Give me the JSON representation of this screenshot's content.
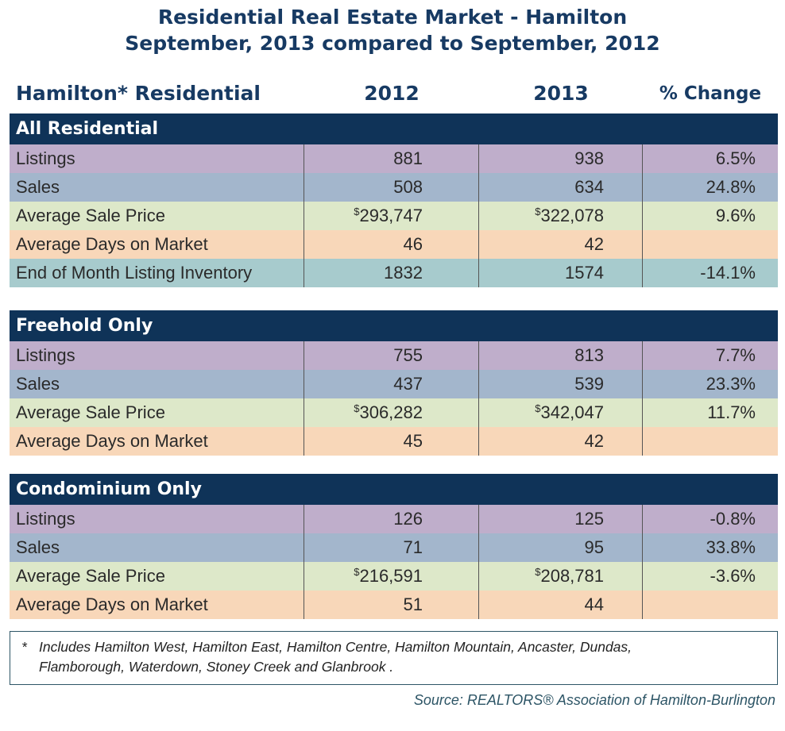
{
  "title_line1": "Residential Real Estate Market - Hamilton",
  "title_line2": "September, 2013 compared to September, 2012",
  "columns": {
    "label": "Hamilton* Residential",
    "y2012": "2012",
    "y2013": "2013",
    "change": "% Change"
  },
  "sections": [
    {
      "heading": "All Residential",
      "rows": [
        {
          "label": "Listings",
          "v2012": "881",
          "v2013": "938",
          "change": "6.5%",
          "style": "list"
        },
        {
          "label": "Sales",
          "v2012": "508",
          "v2013": "634",
          "change": "24.8%",
          "style": "sales"
        },
        {
          "label": "Average Sale Price",
          "prefix": "$",
          "v2012": "293,747",
          "v2013": "322,078",
          "change": "9.6%",
          "style": "avg"
        },
        {
          "label": "Average Days on Market",
          "v2012": "46",
          "v2013": "42",
          "change": "",
          "style": "days"
        },
        {
          "label": "End of Month Listing Inventory",
          "v2012": "1832",
          "v2013": "1574",
          "change": "-14.1%",
          "style": "inv"
        }
      ]
    },
    {
      "heading": "Freehold Only",
      "rows": [
        {
          "label": "Listings",
          "v2012": "755",
          "v2013": "813",
          "change": "7.7%",
          "style": "list"
        },
        {
          "label": "Sales",
          "v2012": "437",
          "v2013": "539",
          "change": "23.3%",
          "style": "sales"
        },
        {
          "label": "Average Sale Price",
          "prefix": "$",
          "v2012": "306,282",
          "v2013": "342,047",
          "change": "11.7%",
          "style": "avg"
        },
        {
          "label": "Average Days on Market",
          "v2012": "45",
          "v2013": "42",
          "change": "",
          "style": "days"
        }
      ]
    },
    {
      "heading": "Condominium Only",
      "rows": [
        {
          "label": "Listings",
          "v2012": "126",
          "v2013": "125",
          "change": "-0.8%",
          "style": "list"
        },
        {
          "label": "Sales",
          "v2012": "71",
          "v2013": "95",
          "change": "33.8%",
          "style": "sales"
        },
        {
          "label": "Average Sale Price",
          "prefix": "$",
          "v2012": "216,591",
          "v2013": "208,781",
          "change": "-3.6%",
          "style": "avg"
        },
        {
          "label": "Average Days on Market",
          "v2012": "51",
          "v2013": "44",
          "change": "",
          "style": "days"
        }
      ]
    }
  ],
  "footnote": {
    "star": "*",
    "line1": "Includes Hamilton West, Hamilton East, Hamilton Centre, Hamilton Mountain, Ancaster, Dundas,",
    "line2": "Flamborough, Waterdown, Stoney Creek and Glanbrook ."
  },
  "source": "Source:  REALTORS® Association of Hamilton-Burlington"
}
